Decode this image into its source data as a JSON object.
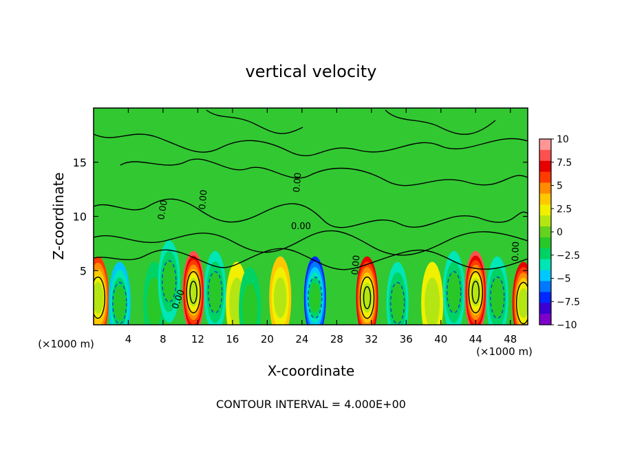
{
  "chart_data": {
    "type": "heatmap",
    "title": "vertical velocity",
    "xlabel": "X-coordinate",
    "ylabel": "Z-coordinate",
    "x_unit": "(×1000 m)",
    "x_unit_right": "(×1000 m)",
    "footer": "CONTOUR INTERVAL = 4.000E+00",
    "xlim": [
      0,
      50
    ],
    "ylim": [
      0,
      20
    ],
    "x_ticks": [
      4,
      8,
      12,
      16,
      20,
      24,
      28,
      32,
      36,
      40,
      44,
      48
    ],
    "y_ticks": [
      5,
      10,
      15
    ],
    "contour_labels": [
      "0.00",
      "0.00",
      "0.00",
      "0.00",
      "0.00",
      "0.00",
      "0.00"
    ],
    "colorbar": {
      "ticks": [
        "10",
        "7.5",
        "5",
        "2.5",
        "0",
        "−2.5",
        "−5",
        "−7.5",
        "−10"
      ],
      "range": [
        -10,
        10
      ],
      "colors": [
        "#7d00c8",
        "#3c00d2",
        "#0028ff",
        "#0078ff",
        "#00c8ff",
        "#00e6b4",
        "#00d264",
        "#28c828",
        "#64d21e",
        "#b4e614",
        "#f0f000",
        "#ffc800",
        "#ff8c00",
        "#ff3c00",
        "#e60000",
        "#ff5050",
        "#ff9696"
      ]
    },
    "cells": [
      {
        "x": 0.5,
        "z": 2.5,
        "w": 6
      },
      {
        "x": 3,
        "z": 2,
        "w": -5
      },
      {
        "x": 7,
        "z": 2,
        "w": -3
      },
      {
        "x": 8.7,
        "z": 4,
        "w": -4
      },
      {
        "x": 11.5,
        "z": 3,
        "w": 9
      },
      {
        "x": 14,
        "z": 3,
        "w": -4
      },
      {
        "x": 16.5,
        "z": 2,
        "w": 3
      },
      {
        "x": 18,
        "z": 1.5,
        "w": -2
      },
      {
        "x": 21.5,
        "z": 2.5,
        "w": 3.5
      },
      {
        "x": 25.5,
        "z": 2.5,
        "w": -7
      },
      {
        "x": 31.5,
        "z": 2.5,
        "w": 8
      },
      {
        "x": 35,
        "z": 2,
        "w": -4
      },
      {
        "x": 39,
        "z": 2,
        "w": 2
      },
      {
        "x": 41.5,
        "z": 3,
        "w": -4
      },
      {
        "x": 44,
        "z": 3,
        "w": 9
      },
      {
        "x": 46.5,
        "z": 2.5,
        "w": -4
      },
      {
        "x": 49.5,
        "z": 2,
        "w": 7
      }
    ]
  }
}
